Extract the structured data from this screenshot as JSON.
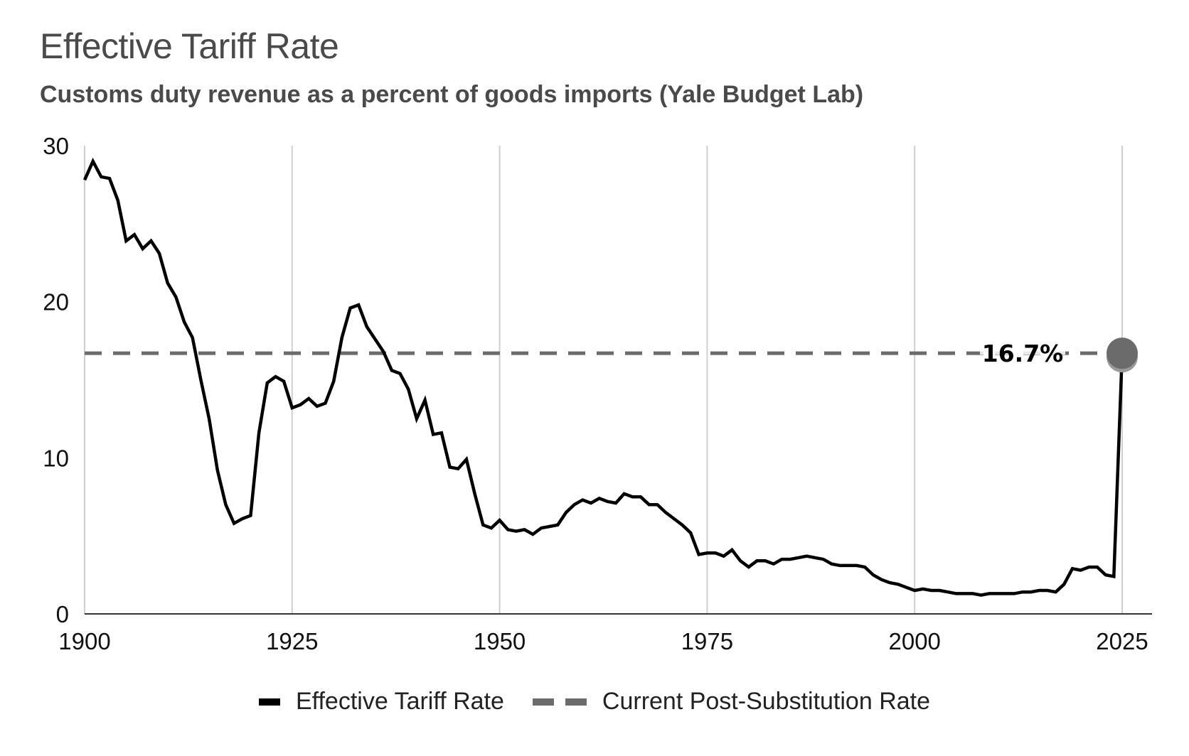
{
  "chart_data": {
    "type": "line",
    "title": "Effective Tariff Rate",
    "subtitle": "Customs duty revenue as a percent of goods imports (Yale Budget Lab)",
    "xlabel": "",
    "ylabel": "",
    "xlim": [
      1900,
      2025
    ],
    "ylim": [
      0,
      30
    ],
    "x_ticks": [
      1900,
      1925,
      1950,
      1975,
      2000,
      2025
    ],
    "y_ticks": [
      0,
      10,
      20,
      30
    ],
    "grid": "vertical",
    "legend_position": "bottom",
    "series": [
      {
        "name": "Effective Tariff Rate",
        "color": "#000000",
        "style": "solid",
        "x": [
          1900,
          1901,
          1902,
          1903,
          1904,
          1905,
          1906,
          1907,
          1908,
          1909,
          1910,
          1911,
          1912,
          1913,
          1914,
          1915,
          1916,
          1917,
          1918,
          1919,
          1920,
          1921,
          1922,
          1923,
          1924,
          1925,
          1926,
          1927,
          1928,
          1929,
          1930,
          1931,
          1932,
          1933,
          1934,
          1935,
          1936,
          1937,
          1938,
          1939,
          1940,
          1941,
          1942,
          1943,
          1944,
          1945,
          1946,
          1947,
          1948,
          1949,
          1950,
          1951,
          1952,
          1953,
          1954,
          1955,
          1956,
          1957,
          1958,
          1959,
          1960,
          1961,
          1962,
          1963,
          1964,
          1965,
          1966,
          1967,
          1968,
          1969,
          1970,
          1971,
          1972,
          1973,
          1974,
          1975,
          1976,
          1977,
          1978,
          1979,
          1980,
          1981,
          1982,
          1983,
          1984,
          1985,
          1986,
          1987,
          1988,
          1989,
          1990,
          1991,
          1992,
          1993,
          1994,
          1995,
          1996,
          1997,
          1998,
          1999,
          2000,
          2001,
          2002,
          2003,
          2004,
          2005,
          2006,
          2007,
          2008,
          2009,
          2010,
          2011,
          2012,
          2013,
          2014,
          2015,
          2016,
          2017,
          2018,
          2019,
          2020,
          2021,
          2022,
          2023,
          2024,
          2025
        ],
        "values": [
          27.8,
          29.0,
          28.0,
          27.9,
          26.5,
          23.9,
          24.3,
          23.4,
          23.9,
          23.1,
          21.2,
          20.3,
          18.7,
          17.7,
          15.0,
          12.5,
          9.2,
          7.0,
          5.8,
          6.1,
          6.3,
          11.6,
          14.8,
          15.2,
          14.9,
          13.2,
          13.4,
          13.8,
          13.3,
          13.5,
          14.9,
          17.7,
          19.6,
          19.8,
          18.4,
          17.6,
          16.8,
          15.6,
          15.4,
          14.4,
          12.5,
          13.7,
          11.5,
          11.6,
          9.4,
          9.3,
          9.9,
          7.7,
          5.7,
          5.5,
          6.0,
          5.4,
          5.3,
          5.4,
          5.1,
          5.5,
          5.6,
          5.7,
          6.5,
          7.0,
          7.3,
          7.1,
          7.4,
          7.2,
          7.1,
          7.7,
          7.5,
          7.5,
          7.0,
          7.0,
          6.5,
          6.1,
          5.7,
          5.2,
          3.8,
          3.9,
          3.9,
          3.7,
          4.1,
          3.4,
          3.0,
          3.4,
          3.4,
          3.2,
          3.5,
          3.5,
          3.6,
          3.7,
          3.6,
          3.5,
          3.2,
          3.1,
          3.1,
          3.1,
          3.0,
          2.5,
          2.2,
          2.0,
          1.9,
          1.7,
          1.5,
          1.6,
          1.5,
          1.5,
          1.4,
          1.3,
          1.3,
          1.3,
          1.2,
          1.3,
          1.3,
          1.3,
          1.3,
          1.4,
          1.4,
          1.5,
          1.5,
          1.4,
          1.9,
          2.9,
          2.8,
          3.0,
          3.0,
          2.5,
          2.4,
          16.7
        ]
      },
      {
        "name": "Current Post-Substitution Rate",
        "color": "#6b6b6b",
        "style": "dashed",
        "value": 16.7
      }
    ],
    "annotations": [
      {
        "text": "16.7%",
        "x": 2025,
        "y": 16.7,
        "marker": "circle",
        "marker_color": "#6b6b6b"
      }
    ]
  },
  "legend": {
    "items": [
      {
        "label": "Effective Tariff Rate"
      },
      {
        "label": "Current Post-Substitution Rate"
      }
    ]
  }
}
